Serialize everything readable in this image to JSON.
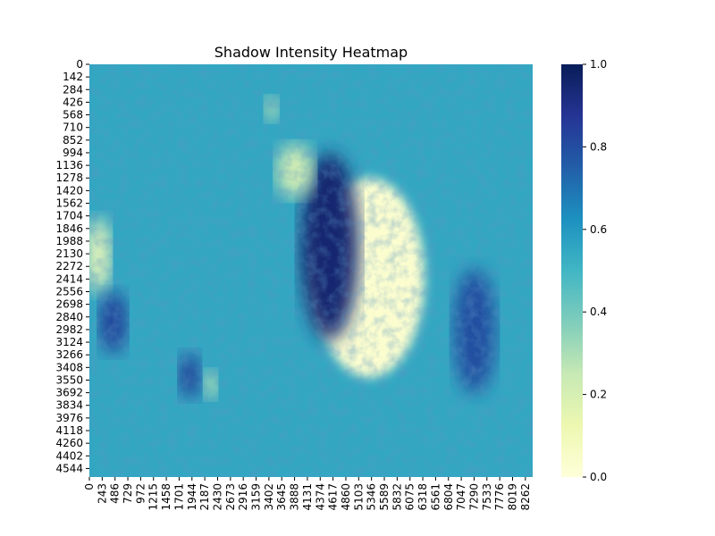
{
  "chart_data": {
    "type": "heatmap",
    "title": "Shadow Intensity Heatmap",
    "xlabel": "",
    "ylabel": "",
    "colormap": "YlGnBu",
    "colorbar": {
      "range": [
        0.0,
        1.0
      ],
      "ticks": [
        "0.0",
        "0.2",
        "0.4",
        "0.6",
        "0.8",
        "1.0"
      ]
    },
    "x_tick_labels": [
      "0",
      "243",
      "486",
      "729",
      "972",
      "1215",
      "1458",
      "1701",
      "1944",
      "2187",
      "2430",
      "2673",
      "2916",
      "3159",
      "3402",
      "3645",
      "3888",
      "4131",
      "4374",
      "4617",
      "4860",
      "5103",
      "5346",
      "5589",
      "5832",
      "6075",
      "6318",
      "6561",
      "6804",
      "7047",
      "7290",
      "7533",
      "7776",
      "8019",
      "8262"
    ],
    "y_tick_labels": [
      "0",
      "142",
      "284",
      "426",
      "568",
      "710",
      "852",
      "994",
      "1136",
      "1278",
      "1420",
      "1562",
      "1704",
      "1846",
      "1988",
      "2130",
      "2272",
      "2414",
      "2556",
      "2698",
      "2840",
      "2982",
      "3124",
      "3266",
      "3408",
      "3550",
      "3692",
      "3834",
      "3976",
      "4118",
      "4260",
      "4402",
      "4544"
    ],
    "x_extent": [
      0,
      8400
    ],
    "y_extent": [
      0,
      4640
    ],
    "background_level": 0.55,
    "features": [
      {
        "kind": "bright-crater-floor",
        "x": 5300,
        "y": 2400,
        "rx": 1050,
        "ry": 1120,
        "value": 0.03
      },
      {
        "kind": "shadowed-crater-wall",
        "x": 4550,
        "y": 2050,
        "rx": 550,
        "ry": 1050,
        "value": 0.95
      },
      {
        "kind": "bright-patch",
        "x": 170,
        "y": 2150,
        "rx": 230,
        "ry": 420,
        "value": 0.1
      },
      {
        "kind": "bright-patch",
        "x": 3900,
        "y": 1200,
        "rx": 350,
        "ry": 300,
        "value": 0.2
      },
      {
        "kind": "bright-patch",
        "x": 2300,
        "y": 3600,
        "rx": 120,
        "ry": 160,
        "value": 0.15
      },
      {
        "kind": "bright-patch",
        "x": 3450,
        "y": 500,
        "rx": 130,
        "ry": 140,
        "value": 0.2
      },
      {
        "kind": "dark-patch",
        "x": 450,
        "y": 2900,
        "rx": 260,
        "ry": 350,
        "value": 0.85
      },
      {
        "kind": "dark-patch",
        "x": 1900,
        "y": 3500,
        "rx": 200,
        "ry": 260,
        "value": 0.85
      },
      {
        "kind": "dark-patch",
        "x": 7300,
        "y": 3000,
        "rx": 400,
        "ry": 700,
        "value": 0.8
      }
    ]
  }
}
